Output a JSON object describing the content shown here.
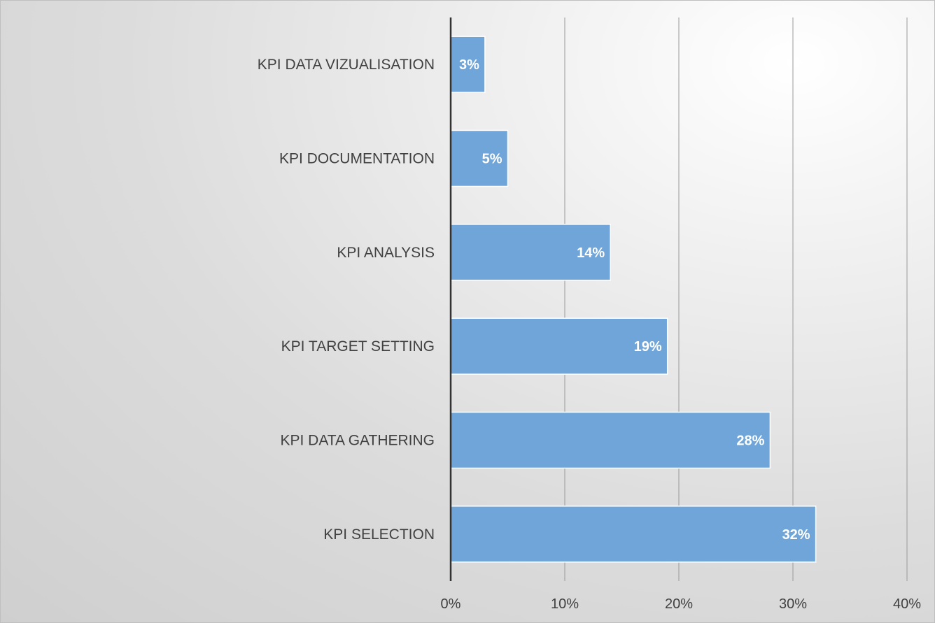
{
  "chart_data": {
    "type": "bar",
    "orientation": "horizontal",
    "categories": [
      "KPI DATA VIZUALISATION",
      "KPI DOCUMENTATION",
      "KPI ANALYSIS",
      "KPI TARGET SETTING",
      "KPI DATA GATHERING",
      "KPI SELECTION"
    ],
    "values": [
      3,
      5,
      14,
      19,
      28,
      32
    ],
    "data_labels": [
      "3%",
      "5%",
      "14%",
      "19%",
      "28%",
      "32%"
    ],
    "xlim": [
      0,
      40
    ],
    "x_ticks": [
      "0%",
      "10%",
      "20%",
      "30%",
      "40%"
    ],
    "grid": true,
    "legend": "none",
    "colors": {
      "bar": "#6fa5d8",
      "bar_border": "#ffffff",
      "text": "#404040",
      "data_label": "#ffffff"
    }
  }
}
